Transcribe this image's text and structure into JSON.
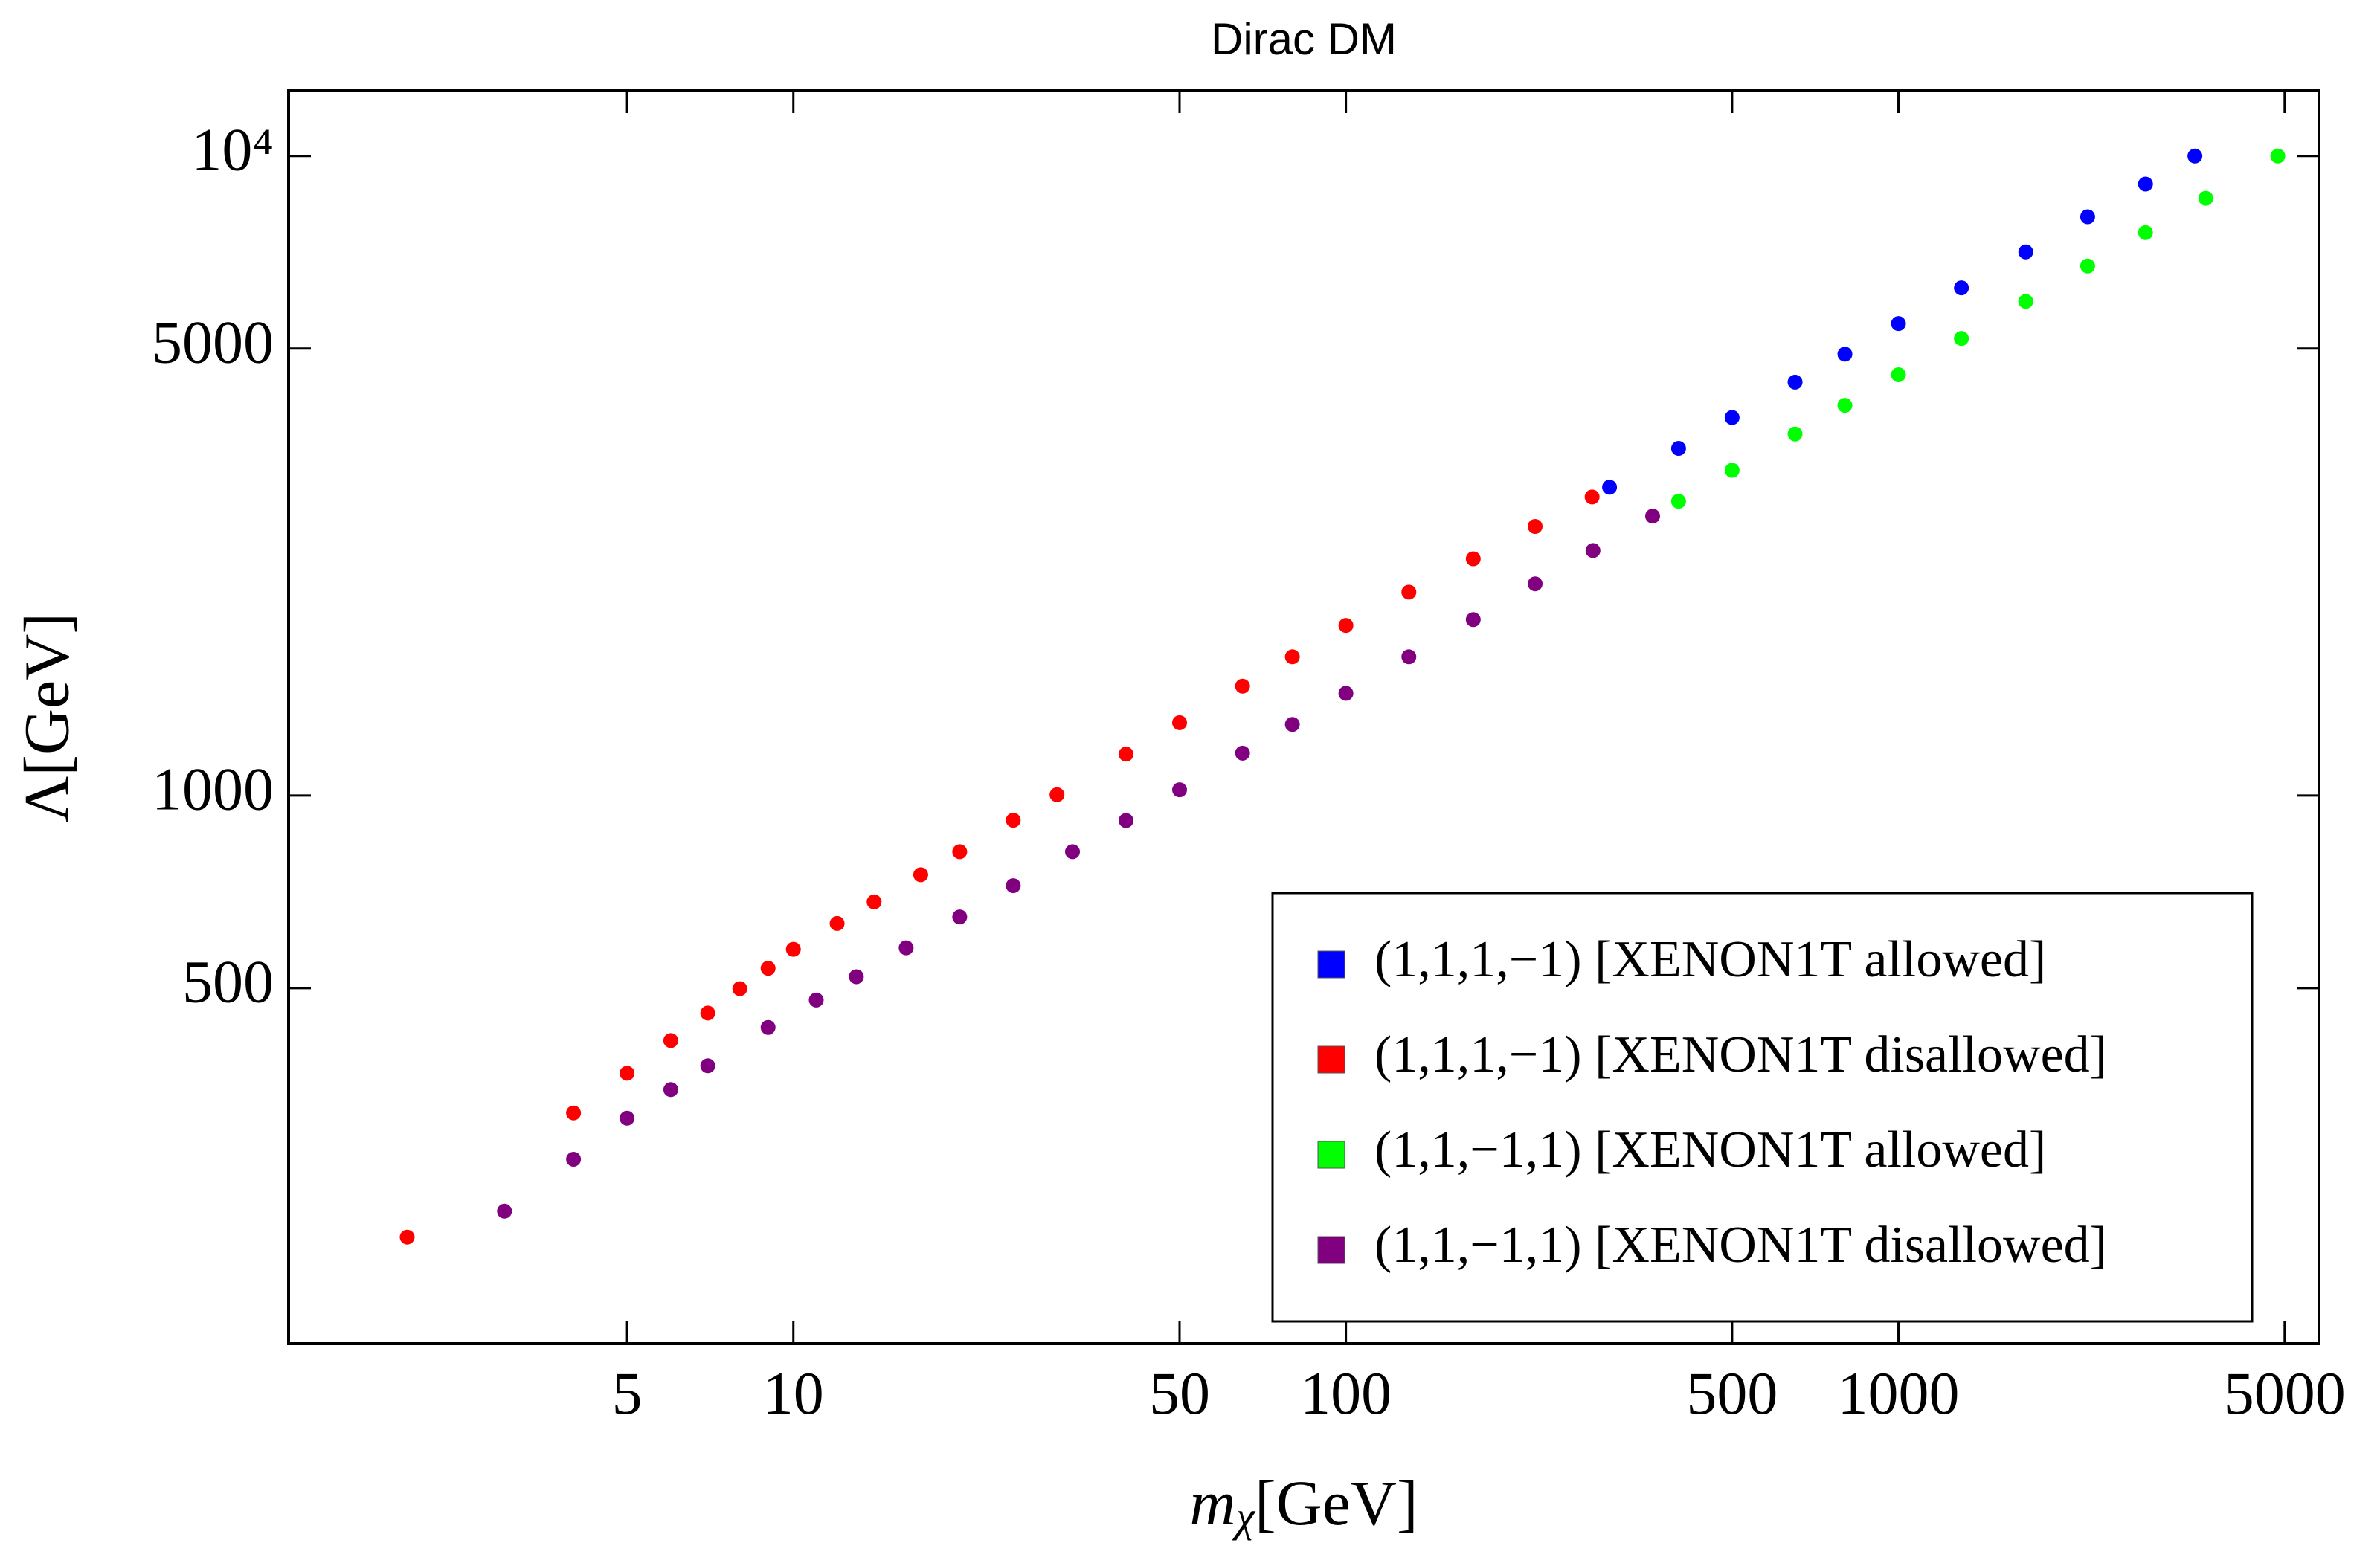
{
  "chart_data": {
    "type": "scatter",
    "title": "Dirac DM",
    "xlabel": {
      "symbol": "m",
      "subscript": "χ",
      "unit": "[GeV]"
    },
    "ylabel": "Λ[GeV]",
    "xlog": true,
    "ylog": true,
    "xlim": [
      1.22,
      5770
    ],
    "ylim": [
      139,
      12650
    ],
    "xticks": [
      5,
      10,
      50,
      100,
      500,
      1000,
      5000
    ],
    "yticks": [
      500,
      1000,
      5000,
      {
        "value": 10000,
        "label": "10⁴"
      }
    ],
    "legend": "lower right",
    "series": [
      {
        "name": "(1,1,1,−1) [XENON1T allowed]",
        "color": "#0000ff",
        "x": [
          300,
          400,
          500,
          650,
          800,
          1000,
          1300,
          1700,
          2200,
          2800,
          3440
        ],
        "values": [
          3035,
          3490,
          3900,
          4430,
          4900,
          5470,
          6220,
          7080,
          8035,
          9040,
          10000
        ]
      },
      {
        "name": "(1,1,1,−1) [XENON1T disallowed]",
        "color": "#ff0000",
        "x": [
          2,
          4,
          5,
          6,
          7,
          8,
          9,
          10,
          12,
          14,
          17,
          20,
          25,
          30,
          40,
          50,
          65,
          80,
          100,
          130,
          170,
          220,
          279
        ],
        "values": [
          204,
          319,
          368,
          414,
          457,
          499,
          537,
          575,
          631,
          682,
          752,
          817,
          915,
          1003,
          1161,
          1300,
          1483,
          1648,
          1845,
          2080,
          2345,
          2635,
          2930
        ]
      },
      {
        "name": "(1,1,−1,1) [XENON1T allowed]",
        "color": "#00ff00",
        "x": [
          400,
          500,
          650,
          800,
          1000,
          1300,
          1700,
          2200,
          2800,
          3600,
          4860
        ],
        "values": [
          2885,
          3225,
          3675,
          4075,
          4550,
          5185,
          5925,
          6730,
          7590,
          8590,
          10000
        ]
      },
      {
        "name": "(1,1,−1,1) [XENON1T disallowed]",
        "color": "#800080",
        "x": [
          3,
          4,
          5,
          6,
          7,
          9,
          11,
          13,
          16,
          20,
          25,
          32,
          40,
          50,
          65,
          80,
          100,
          130,
          170,
          220,
          280,
          359
        ],
        "values": [
          224,
          270,
          313,
          347,
          378,
          434,
          479,
          521,
          578,
          646,
          723,
          817,
          914,
          1021,
          1165,
          1292,
          1445,
          1648,
          1884,
          2143,
          2416,
          2735
        ]
      }
    ]
  }
}
